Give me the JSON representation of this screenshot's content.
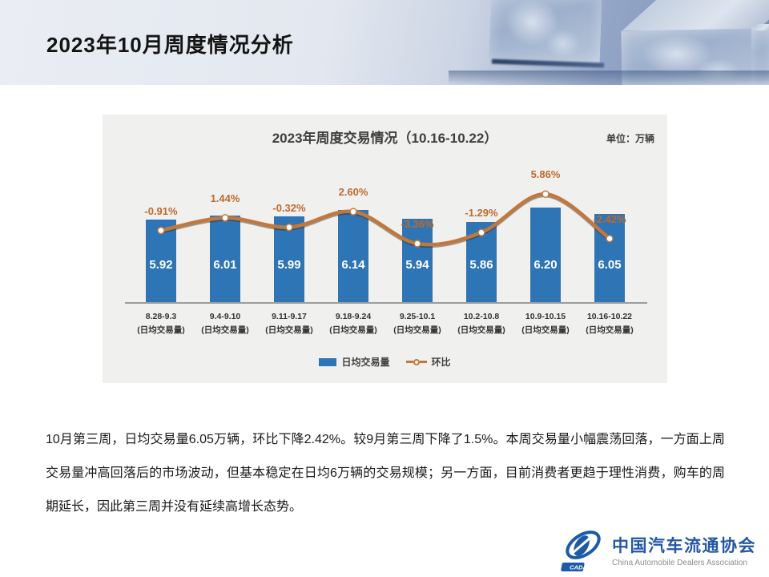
{
  "slide": {
    "title": "2023年10月周度情况分析"
  },
  "chart": {
    "title": "2023年周度交易情况（10.16-10.22）",
    "unit_label": "单位：万辆",
    "legend": {
      "bar_label": "日均交易量",
      "line_label": "环比"
    }
  },
  "chart_data": {
    "type": "bar+line",
    "title": "2023年周度交易情况（10.16-10.22）",
    "unit": "万辆",
    "categories": [
      "8.28-9.3",
      "9.4-9.10",
      "9.11-9.17",
      "9.18-9.24",
      "9.25-10.1",
      "10.2-10.8",
      "10.9-10.15",
      "10.16-10.22"
    ],
    "category_sublabel": "(日均交易量)",
    "series": [
      {
        "name": "日均交易量",
        "type": "bar",
        "values": [
          5.92,
          6.01,
          5.99,
          6.14,
          5.94,
          5.86,
          6.2,
          6.05
        ],
        "value_labels": [
          "5.92",
          "6.01",
          "5.99",
          "6.14",
          "5.94",
          "5.86",
          "6.20",
          "6.05"
        ],
        "color": "#2e75b6"
      },
      {
        "name": "环比",
        "type": "line",
        "values": [
          -0.91,
          1.44,
          -0.32,
          2.6,
          -3.36,
          -1.29,
          5.86,
          -2.42
        ],
        "value_labels": [
          "-0.91%",
          "1.44%",
          "-0.32%",
          "2.60%",
          "-3.36%",
          "-1.29%",
          "5.86%",
          "-2.42%"
        ],
        "color": "#c0783f",
        "label_color": "#c0692b"
      }
    ],
    "legend_position": "bottom",
    "grid": false
  },
  "body": {
    "paragraph": "10月第三周，日均交易量6.05万辆，环比下降2.42%。较9月第三周下降了1.5%。本周交易量小幅震荡回落，一方面上周交易量冲高回落后的市场波动，但基本稳定在日均6万辆的交易规模；另一方面，目前消费者更趋于理性消费，购车的周期延长，因此第三周并没有延续高增长态势。",
    "colors": {
      "bar_blue": "#2e75b6",
      "line_orange": "#c0783f",
      "pct_text": "#c0692b"
    }
  },
  "footer": {
    "logo_abbr": "CADA",
    "org_cn": "中国汽车流通协会",
    "org_en": "China Automobile Dealers Association"
  }
}
